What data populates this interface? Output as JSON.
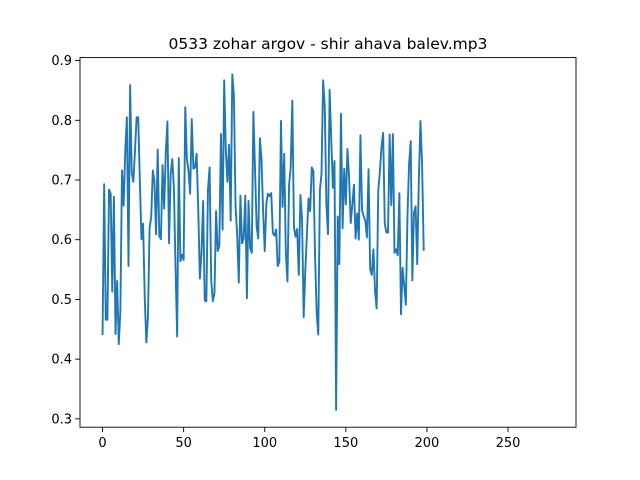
{
  "chart_data": {
    "type": "line",
    "title": "0533 zohar argov - shir ahava balev.mp3",
    "xlabel": "",
    "ylabel": "",
    "xlim": [
      -13.9,
      291.9
    ],
    "ylim": [
      0.286,
      0.905
    ],
    "xticks": [
      0,
      50,
      100,
      150,
      200,
      250
    ],
    "xtick_labels": [
      "0",
      "50",
      "100",
      "150",
      "200",
      "250"
    ],
    "yticks": [
      0.3,
      0.4,
      0.5,
      0.6,
      0.7,
      0.8,
      0.9
    ],
    "ytick_labels": [
      "0.3",
      "0.4",
      "0.5",
      "0.6",
      "0.7",
      "0.8",
      "0.9"
    ],
    "grid": false,
    "line_color": "#1f77b4",
    "series": [
      {
        "values": [
          0.442,
          0.693,
          0.466,
          0.466,
          0.684,
          0.677,
          0.513,
          0.672,
          0.442,
          0.531,
          0.425,
          0.482,
          0.716,
          0.657,
          0.749,
          0.805,
          0.556,
          0.859,
          0.712,
          0.697,
          0.749,
          0.805,
          0.805,
          0.7,
          0.601,
          0.627,
          0.504,
          0.428,
          0.471,
          0.619,
          0.638,
          0.716,
          0.697,
          0.609,
          0.751,
          0.606,
          0.601,
          0.725,
          0.652,
          0.746,
          0.798,
          0.594,
          0.711,
          0.735,
          0.686,
          0.553,
          0.438,
          0.737,
          0.564,
          0.575,
          0.566,
          0.822,
          0.735,
          0.716,
          0.677,
          0.802,
          0.719,
          0.721,
          0.744,
          0.652,
          0.535,
          0.578,
          0.665,
          0.498,
          0.497,
          0.684,
          0.721,
          0.531,
          0.497,
          0.51,
          0.648,
          0.581,
          0.59,
          0.777,
          0.617,
          0.867,
          0.749,
          0.697,
          0.759,
          0.632,
          0.877,
          0.84,
          0.655,
          0.609,
          0.528,
          0.674,
          0.594,
          0.602,
          0.674,
          0.502,
          0.665,
          0.586,
          0.578,
          0.814,
          0.719,
          0.622,
          0.602,
          0.77,
          0.735,
          0.647,
          0.581,
          0.661,
          0.677,
          0.673,
          0.678,
          0.611,
          0.607,
          0.617,
          0.556,
          0.563,
          0.799,
          0.655,
          0.744,
          0.578,
          0.53,
          0.692,
          0.721,
          0.833,
          0.621,
          0.605,
          0.618,
          0.541,
          0.675,
          0.634,
          0.47,
          0.548,
          0.609,
          0.669,
          0.648,
          0.721,
          0.715,
          0.576,
          0.478,
          0.441,
          0.683,
          0.71,
          0.867,
          0.823,
          0.659,
          0.609,
          0.851,
          0.77,
          0.687,
          0.732,
          0.315,
          0.639,
          0.559,
          0.811,
          0.619,
          0.719,
          0.659,
          0.752,
          0.704,
          0.628,
          0.659,
          0.692,
          0.602,
          0.644,
          0.6,
          0.775,
          0.65,
          0.639,
          0.632,
          0.604,
          0.718,
          0.551,
          0.541,
          0.584,
          0.514,
          0.485,
          0.683,
          0.714,
          0.757,
          0.779,
          0.627,
          0.612,
          0.612,
          0.776,
          0.658,
          0.777,
          0.578,
          0.584,
          0.574,
          0.678,
          0.475,
          0.553,
          0.523,
          0.491,
          0.641,
          0.727,
          0.765,
          0.532,
          0.645,
          0.656,
          0.559,
          0.699,
          0.799,
          0.727,
          0.583
        ]
      }
    ]
  }
}
